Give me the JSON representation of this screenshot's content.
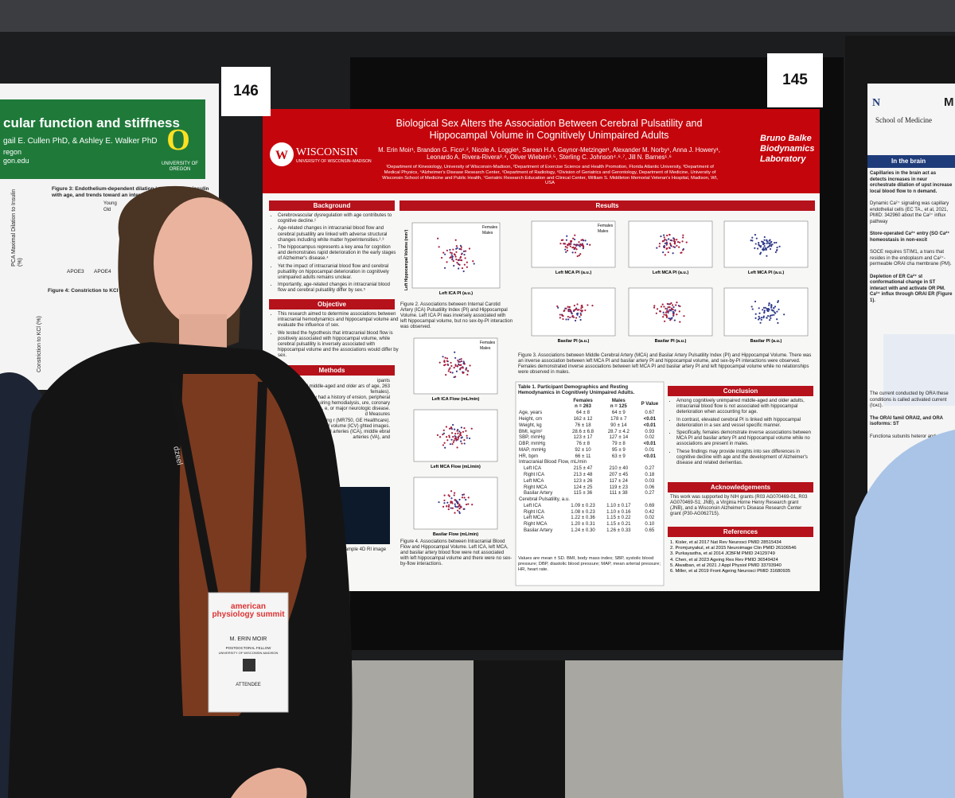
{
  "boards": [
    "146",
    "145"
  ],
  "left_poster": {
    "title": "cular function and stiffness",
    "authors": "gail E. Cullen PhD, & Ashley E. Walker PhD",
    "affil": "regon\ngon.edu",
    "logo": "UNIVERSITY OF OREGON",
    "fig3": "Figure 3: Endothelium-dependent dilation in response to insulin with age, and trends toward an interaction of APOE",
    "fig4": "Figure 4: Constriction to KCl and",
    "ylabel1": "PCA Maximal Dilation to Insulin (%)",
    "ylabel2": "Constriction to KCl (%)",
    "groups": [
      "APOE3",
      "APOE4"
    ],
    "legend": [
      "Young",
      "Old"
    ]
  },
  "poster": {
    "title": "Biological Sex Alters the Association Between Cerebral Pulsatility and Hippocampal Volume in Cognitively Unimpaired Adults",
    "authors": "M. Erin Moir¹, Brandon G. Fico¹˒², Nicole A. Loggie¹, Sarean H.A. Gaynor-Metzinger¹, Alexander M. Norby¹, Anna J. Howery¹, Leonardo A. Rivera-Rivera³˒⁴, Oliver Wieben³˒⁵, Sterling C. Johnson⁴˒⁶˒⁷, Jill N. Barnes¹˒⁶",
    "affiliations": "¹Department of Kinesiology, University of Wisconsin-Madison, ²Department of Exercise Science and Health Promotion, Florida Atlantic University, ³Department of Medical Physics, ⁴Alzheimer's Disease Research Center, ⁵Department of Radiology, ⁶Division of Geriatrics and Gerontology, Department of Medicine, University of Wisconsin School of Medicine and Public Health, ⁷Geriatric Research Education and Clinical Center, William S. Middleton Memorial Veteran's Hospital, Madison, WI, USA",
    "logo_left": "WISCONSIN",
    "logo_left_sub": "UNIVERSITY OF WISCONSIN–MADISON",
    "logo_right": "Bruno Balke Biodynamics Laboratory",
    "background": {
      "heading": "Background",
      "items": [
        "Cerebrovascular dysregulation with age contributes to cognitive decline.¹",
        "Age-related changes in intracranial blood flow and cerebral pulsatility are linked with adverse structural changes including white matter hyperintensities.²˒³",
        "The hippocampus represents a key area for cognition and demonstrates rapid deterioration in the early stages of Alzheimer's disease.⁴",
        "Yet the impact of intracranial blood flow and cerebral pulsatility on hippocampal deterioration in cognitively unimpaired adults remains unclear.",
        "Importantly, age-related changes in intracranial blood flow and cerebral pulsatility differ by sex.⁵"
      ]
    },
    "objective": {
      "heading": "Objective",
      "items": [
        "This research aimed to determine associations between intracranial hemodynamics and hippocampal volume and evaluate the influence of sex.",
        "We tested the hypothesis that intracranial blood flow is positively associated with hippocampal volume, while cerebral pulsatility is inversely associated with hippocampal volume and the associations would differ by sex."
      ]
    },
    "methods": {
      "heading": "Methods",
      "text": "ipants\nively unimpaired middle-aged and older ars of age, 263 females).\nexcluded if they had a history of ension, peripheral vascular ease requiring hemodialysis, ure, coronary artery disease, e, or major neurologic disease.\nd Measures\ngnetic resonance imaging r (MR750, GE Healthcare).\nintracranial volume (ICV) ghted images.\nmeasured using 4D flow d arteries (ICA), middle ebral arteries (VA), and",
      "figure": "1. Example 4D RI image from"
    },
    "results": {
      "heading": "Results",
      "fig2": "Figure 2. Associations between Internal Carotid Artery (ICA) Pulsatility Index (PI) and Hippocampal Volume. Left ICA PI was inversely associated with left hippocampal volume, but no sex-by-PI interaction was observed.",
      "fig3": "Figure 3. Associations between Middle Cerebral Artery (MCA) and Basilar Artery Pulsatility Index (PI) and Hippocampal Volume. There was an inverse association between left MCA PI and basilar artery PI and hippocampal volume, and sex-by-PI interactions were observed. Females demonstrated inverse associations between left MCA PI and basilar artery PI and left hippocampal volume while no relationships were observed in males.",
      "fig4": "Figure 4. Associations between Intracranial Blood Flow and Hippocampal Volume. Left ICA, left MCA, and basilar artery blood flow were not associated with left hippocampal volume and there were no sex-by-flow interactions.",
      "legend": [
        "Females",
        "Males"
      ],
      "ylabel": "Left Hippocampal Volume (mm³)",
      "xlabels": [
        "Left ICA PI (a.u.)",
        "Left MCA PI (a.u.)",
        "Basilar PI (a.u.)",
        "Left ICA Flow (mL/min)",
        "Left MCA Flow (mL/min)",
        "Basilar Flow (mL/min)"
      ]
    },
    "table": {
      "caption": "Table 1. Participant Demographics and Resting Hemodynamics in Cognitively Unimpaired Adults.",
      "header": [
        "Females\nn = 263",
        "Males\nn = 125",
        "P Value"
      ],
      "rows": [
        [
          "Age, years",
          "64 ± 8",
          "64 ± 9",
          "0.67"
        ],
        [
          "Height, cm",
          "162 ± 12",
          "178 ± 7",
          "<0.01"
        ],
        [
          "Weight, kg",
          "76 ± 18",
          "90 ± 14",
          "<0.01"
        ],
        [
          "BMI, kg/m²",
          "28.6 ± 6.8",
          "28.7 ± 4.2",
          "0.93"
        ],
        [
          "SBP, mmHg",
          "123 ± 17",
          "127 ± 14",
          "0.02"
        ],
        [
          "DBP, mmHg",
          "76 ± 8",
          "79 ± 8",
          "<0.01"
        ],
        [
          "MAP, mmHg",
          "92 ± 10",
          "95 ± 9",
          "0.01"
        ],
        [
          "HR, bpm",
          "66 ± 11",
          "63 ± 9",
          "<0.01"
        ],
        [
          "Intracranial Blood Flow, mL/min"
        ],
        [
          "Left ICA",
          "215 ± 47",
          "210 ± 40",
          "0.27"
        ],
        [
          "Right ICA",
          "213 ± 48",
          "207 ± 45",
          "0.18"
        ],
        [
          "Left MCA",
          "123 ± 26",
          "117 ± 24",
          "0.03"
        ],
        [
          "Right MCA",
          "124 ± 25",
          "119 ± 23",
          "0.06"
        ],
        [
          "Basilar Artery",
          "115 ± 36",
          "111 ± 38",
          "0.27"
        ],
        [
          "Cerebral Pulsatility, a.u."
        ],
        [
          "Left ICA",
          "1.09 ± 0.23",
          "1.10 ± 0.17",
          "0.69"
        ],
        [
          "Right ICA",
          "1.08 ± 0.23",
          "1.10 ± 0.16",
          "0.42"
        ],
        [
          "Left MCA",
          "1.22 ± 0.36",
          "1.15 ± 0.22",
          "0.02"
        ],
        [
          "Right MCA",
          "1.20 ± 0.31",
          "1.15 ± 0.21",
          "0.10"
        ],
        [
          "Basilar Artery",
          "1.24 ± 0.30",
          "1.26 ± 0.33",
          "0.65"
        ]
      ],
      "note": "Values are mean ± SD. BMI, body mass index; SBP, systolic blood pressure; DBP, diastolic blood pressure; MAP, mean arterial pressure; HR, heart rate."
    },
    "conclusion": {
      "heading": "Conclusion",
      "items": [
        "Among cognitively unimpaired middle-aged and older adults, intracranial blood flow is not associated with hippocampal deterioration when accounting for age.",
        "In contrast, elevated cerebral PI is linked with hippocampal deterioration in a sex and vessel specific manner.",
        "Specifically, females demonstrate inverse associations between MCA PI and basilar artery PI and hippocampal volume while no associations are present in males.",
        "These findings may provide insights into sex differences in cognitive decline with age and the development of Alzheimer's disease and related dementias."
      ]
    },
    "acknowledgements": {
      "heading": "Acknowledgements",
      "text": "This work was supported by NIH grants (R03 AG070469-01, R03 AG070469-S1; JNB), a Virginia Horne Henry Research grant (JNB), and a Wisconsin Alzheimer's Disease Research Center grant (P30-AG062715)."
    },
    "references": {
      "heading": "References",
      "items": [
        "1. Kisler, et al 2017 Nat Rev Neurosci PMID 28515434",
        "2. Promjunyakul, et al 2015 Neuroimage Clin PMID 26106546",
        "3. Purkayastha, et al 2014 JCBFM PMID 24129749",
        "4. Chen, et al 2023 Ageing Res Rev PMID 36549424",
        "5. Alwatban, et al 2021 J Appl Physiol PMID 33703940",
        "6. Miller, et al 2019 Front Ageing Neurosci PMID 31680935"
      ]
    }
  },
  "right_poster": {
    "logo": "N",
    "school": "School of Medicine",
    "heading_frag": "M",
    "section": "In the brain",
    "paragraphs": [
      "Capillaries in the brain act as detects increases in neur orchestrate dilation of upst increase local blood flow to n demand.",
      "Dynamic Ca²⁺ signaling was capillary endothelial cells (EC TA., et al, 2021, PMID: 342960 about the Ca²⁺ influx pathway",
      "Store-operated Ca²⁺ entry (SO Ca²⁺ homeostasis in non-excit",
      "SOCE requires STIM1, a trans that resides in the endoplasm and Ca²⁺-permeable ORAI cha membrane (PM).",
      "Depletion of ER Ca²⁺ st conformational change in ST interact with and activate OR PM. Ca²⁺ influx through ORAI ER (Figure 1).",
      "The current conducted by ORA these conditions is called activated current (Iᴄᴀᴄ).",
      "The ORAI famil ORAI2, and ORA isoforms: ST",
      "Functiona subunits heteror and pl"
    ]
  },
  "badge": {
    "event": "american physiology summit",
    "name": "M. ERIN MOIR",
    "role": "POSTDOCTORAL FELLOW",
    "org": "UNIVERSITY OF WISCONSIN-MADISON",
    "type": "ATTENDEE"
  },
  "lanyard": "dzeel"
}
